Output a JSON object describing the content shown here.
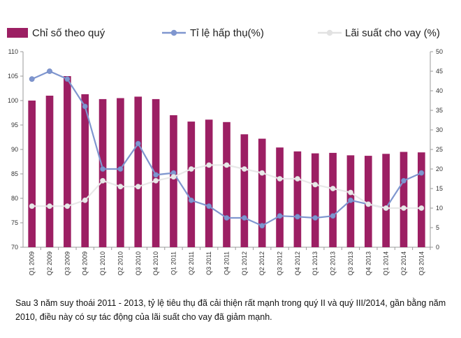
{
  "chart_data": {
    "type": "bar",
    "categories": [
      "Q1 2009",
      "Q2 2009",
      "Q3 2009",
      "Q4 2009",
      "Q1 2010",
      "Q2 2010",
      "Q3 2010",
      "Q4 2010",
      "Q1 2011",
      "Q2 2011",
      "Q3 2011",
      "Q4 2011",
      "Q1 2012",
      "Q2 2012",
      "Q3 2012",
      "Q4 2012",
      "Q1 2013",
      "Q2 2013",
      "Q3 2013",
      "Q4 2013",
      "Q1 2014",
      "Q2 2014",
      "Q3 2014"
    ],
    "series": [
      {
        "name": "Chỉ số theo quý",
        "kind": "bar",
        "axis": "left",
        "color": "#9c1f63",
        "values": [
          100,
          101,
          105,
          101.3,
          100.3,
          100.5,
          100.8,
          100.3,
          97,
          95.7,
          96.1,
          95.6,
          93.1,
          92.2,
          90.4,
          89.6,
          89.2,
          89.3,
          88.8,
          88.7,
          89.1,
          89.5,
          89.4
        ]
      },
      {
        "name": "Tỉ lệ hấp thụ(%)",
        "kind": "line",
        "axis": "right",
        "color": "#7f96cf",
        "values": [
          43,
          45,
          43,
          36,
          20,
          20,
          26.5,
          18.5,
          19,
          12,
          10.5,
          7.5,
          7.5,
          5.5,
          8,
          7.8,
          7.5,
          8,
          12,
          11,
          10,
          17,
          19
        ]
      },
      {
        "name": "Lãi suất cho vay (%)",
        "kind": "line",
        "axis": "right",
        "color": "#e8e8e8",
        "values": [
          10.5,
          10.5,
          10.5,
          12,
          17,
          15.5,
          15.5,
          17,
          18,
          20,
          21,
          21,
          20,
          19,
          17.5,
          17.5,
          16,
          15,
          14,
          11,
          10,
          10,
          10
        ]
      }
    ],
    "y_left": {
      "min": 70,
      "max": 110,
      "ticks": [
        70,
        75,
        80,
        85,
        90,
        95,
        100,
        105,
        110
      ]
    },
    "y_right": {
      "min": 0,
      "max": 50,
      "ticks": [
        0,
        5,
        10,
        15,
        20,
        25,
        30,
        35,
        40,
        45,
        50
      ]
    },
    "grid": false,
    "legend_position": "top",
    "caption": "Sau 3 năm suy thoái 2011 - 2013, tỷ lệ tiêu thụ đã cải thiện rất mạnh trong quý II và quý III/2014, gần bằng năm 2010, điều này có sự tác động của lãi suất cho vay đã giảm mạnh."
  }
}
